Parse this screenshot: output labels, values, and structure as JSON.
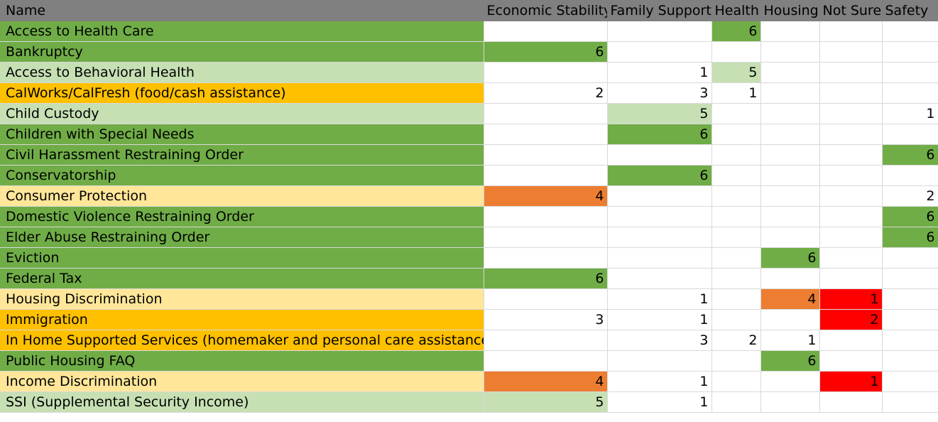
{
  "colors": {
    "header": "#808080",
    "dark_green": "#70ad47",
    "light_green": "#c6e0b4",
    "gold": "#ffc000",
    "pale_yellow": "#ffe699",
    "orange": "#ed7d31",
    "red": "#ff0000",
    "white": "#ffffff"
  },
  "columns": [
    "Name",
    "Economic Stability",
    "Family Support",
    "Health",
    "Housing",
    "Not Sure",
    "Safety"
  ],
  "rows": [
    {
      "name": "Access to Health Care",
      "name_color": "dark_green",
      "cells": [
        {
          "v": "",
          "c": ""
        },
        {
          "v": "",
          "c": ""
        },
        {
          "v": "6",
          "c": "dark_green"
        },
        {
          "v": "",
          "c": ""
        },
        {
          "v": "",
          "c": ""
        },
        {
          "v": "",
          "c": ""
        }
      ]
    },
    {
      "name": "Bankruptcy",
      "name_color": "dark_green",
      "cells": [
        {
          "v": "6",
          "c": "dark_green"
        },
        {
          "v": "",
          "c": ""
        },
        {
          "v": "",
          "c": ""
        },
        {
          "v": "",
          "c": ""
        },
        {
          "v": "",
          "c": ""
        },
        {
          "v": "",
          "c": ""
        }
      ]
    },
    {
      "name": "Access to Behavioral Health",
      "name_color": "light_green",
      "cells": [
        {
          "v": "",
          "c": ""
        },
        {
          "v": "1",
          "c": ""
        },
        {
          "v": "5",
          "c": "light_green"
        },
        {
          "v": "",
          "c": ""
        },
        {
          "v": "",
          "c": ""
        },
        {
          "v": "",
          "c": ""
        }
      ]
    },
    {
      "name": "CalWorks/CalFresh (food/cash assistance)",
      "name_color": "gold",
      "cells": [
        {
          "v": "2",
          "c": ""
        },
        {
          "v": "3",
          "c": ""
        },
        {
          "v": "1",
          "c": ""
        },
        {
          "v": "",
          "c": ""
        },
        {
          "v": "",
          "c": ""
        },
        {
          "v": "",
          "c": ""
        }
      ]
    },
    {
      "name": "Child Custody",
      "name_color": "light_green",
      "cells": [
        {
          "v": "",
          "c": ""
        },
        {
          "v": "5",
          "c": "light_green"
        },
        {
          "v": "",
          "c": ""
        },
        {
          "v": "",
          "c": ""
        },
        {
          "v": "",
          "c": ""
        },
        {
          "v": "1",
          "c": ""
        }
      ]
    },
    {
      "name": "Children with Special Needs",
      "name_color": "dark_green",
      "cells": [
        {
          "v": "",
          "c": ""
        },
        {
          "v": "6",
          "c": "dark_green"
        },
        {
          "v": "",
          "c": ""
        },
        {
          "v": "",
          "c": ""
        },
        {
          "v": "",
          "c": ""
        },
        {
          "v": "",
          "c": ""
        }
      ]
    },
    {
      "name": "Civil Harassment Restraining Order",
      "name_color": "dark_green",
      "cells": [
        {
          "v": "",
          "c": ""
        },
        {
          "v": "",
          "c": ""
        },
        {
          "v": "",
          "c": ""
        },
        {
          "v": "",
          "c": ""
        },
        {
          "v": "",
          "c": ""
        },
        {
          "v": "6",
          "c": "dark_green"
        }
      ]
    },
    {
      "name": "Conservatorship",
      "name_color": "dark_green",
      "cells": [
        {
          "v": "",
          "c": ""
        },
        {
          "v": "6",
          "c": "dark_green"
        },
        {
          "v": "",
          "c": ""
        },
        {
          "v": "",
          "c": ""
        },
        {
          "v": "",
          "c": ""
        },
        {
          "v": "",
          "c": ""
        }
      ]
    },
    {
      "name": "Consumer Protection",
      "name_color": "pale_yellow",
      "cells": [
        {
          "v": "4",
          "c": "orange"
        },
        {
          "v": "",
          "c": ""
        },
        {
          "v": "",
          "c": ""
        },
        {
          "v": "",
          "c": ""
        },
        {
          "v": "",
          "c": ""
        },
        {
          "v": "2",
          "c": ""
        }
      ]
    },
    {
      "name": "Domestic Violence Restraining Order",
      "name_color": "dark_green",
      "cells": [
        {
          "v": "",
          "c": ""
        },
        {
          "v": "",
          "c": ""
        },
        {
          "v": "",
          "c": ""
        },
        {
          "v": "",
          "c": ""
        },
        {
          "v": "",
          "c": ""
        },
        {
          "v": "6",
          "c": "dark_green"
        }
      ]
    },
    {
      "name": "Elder Abuse Restraining Order",
      "name_color": "dark_green",
      "cells": [
        {
          "v": "",
          "c": ""
        },
        {
          "v": "",
          "c": ""
        },
        {
          "v": "",
          "c": ""
        },
        {
          "v": "",
          "c": ""
        },
        {
          "v": "",
          "c": ""
        },
        {
          "v": "6",
          "c": "dark_green"
        }
      ]
    },
    {
      "name": "Eviction",
      "name_color": "dark_green",
      "cells": [
        {
          "v": "",
          "c": ""
        },
        {
          "v": "",
          "c": ""
        },
        {
          "v": "",
          "c": ""
        },
        {
          "v": "6",
          "c": "dark_green"
        },
        {
          "v": "",
          "c": ""
        },
        {
          "v": "",
          "c": ""
        }
      ]
    },
    {
      "name": "Federal Tax",
      "name_color": "dark_green",
      "cells": [
        {
          "v": "6",
          "c": "dark_green"
        },
        {
          "v": "",
          "c": ""
        },
        {
          "v": "",
          "c": ""
        },
        {
          "v": "",
          "c": ""
        },
        {
          "v": "",
          "c": ""
        },
        {
          "v": "",
          "c": ""
        }
      ]
    },
    {
      "name": "Housing Discrimination",
      "name_color": "pale_yellow",
      "cells": [
        {
          "v": "",
          "c": ""
        },
        {
          "v": "1",
          "c": ""
        },
        {
          "v": "",
          "c": ""
        },
        {
          "v": "4",
          "c": "orange"
        },
        {
          "v": "1",
          "c": "red"
        },
        {
          "v": "",
          "c": ""
        }
      ]
    },
    {
      "name": "Immigration",
      "name_color": "gold",
      "cells": [
        {
          "v": "3",
          "c": ""
        },
        {
          "v": "1",
          "c": ""
        },
        {
          "v": "",
          "c": ""
        },
        {
          "v": "",
          "c": ""
        },
        {
          "v": "2",
          "c": "red"
        },
        {
          "v": "",
          "c": ""
        }
      ]
    },
    {
      "name": "In Home Supported Services (homemaker and personal care assistance)",
      "name_color": "gold",
      "cells": [
        {
          "v": "",
          "c": ""
        },
        {
          "v": "3",
          "c": ""
        },
        {
          "v": "2",
          "c": ""
        },
        {
          "v": "1",
          "c": ""
        },
        {
          "v": "",
          "c": ""
        },
        {
          "v": "",
          "c": ""
        }
      ]
    },
    {
      "name": "Public Housing FAQ",
      "name_color": "dark_green",
      "cells": [
        {
          "v": "",
          "c": ""
        },
        {
          "v": "",
          "c": ""
        },
        {
          "v": "",
          "c": ""
        },
        {
          "v": "6",
          "c": "dark_green"
        },
        {
          "v": "",
          "c": ""
        },
        {
          "v": "",
          "c": ""
        }
      ]
    },
    {
      "name": "Income Discrimination",
      "name_color": "pale_yellow",
      "cells": [
        {
          "v": "4",
          "c": "orange"
        },
        {
          "v": "1",
          "c": ""
        },
        {
          "v": "",
          "c": ""
        },
        {
          "v": "",
          "c": ""
        },
        {
          "v": "1",
          "c": "red"
        },
        {
          "v": "",
          "c": ""
        }
      ]
    },
    {
      "name": "SSI (Supplemental Security Income)",
      "name_color": "light_green",
      "cells": [
        {
          "v": "5",
          "c": "light_green"
        },
        {
          "v": "1",
          "c": ""
        },
        {
          "v": "",
          "c": ""
        },
        {
          "v": "",
          "c": ""
        },
        {
          "v": "",
          "c": ""
        },
        {
          "v": "",
          "c": ""
        }
      ]
    }
  ]
}
